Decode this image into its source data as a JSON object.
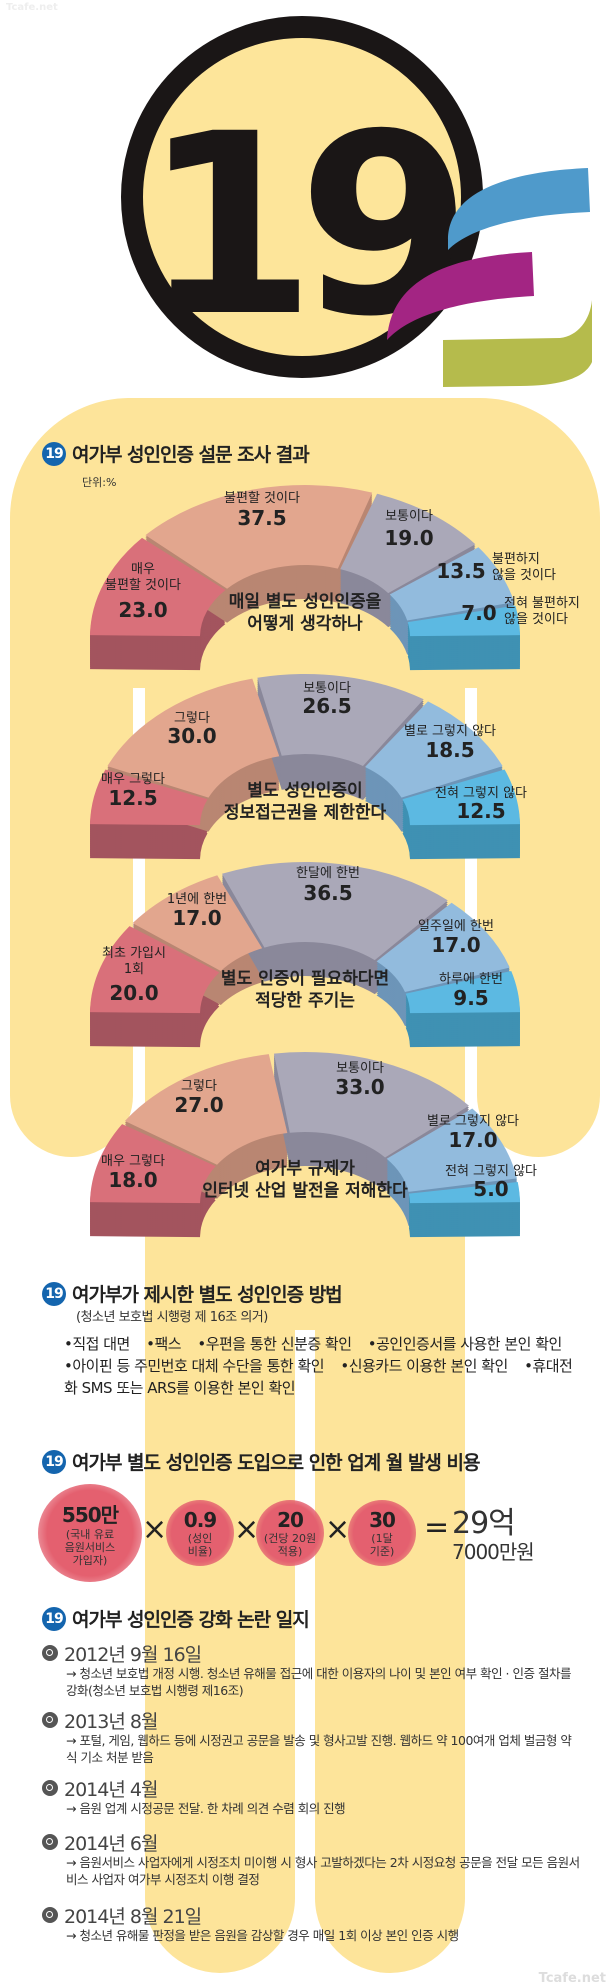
{
  "watermark": "Tcafe.net",
  "logo": {
    "text": "19",
    "colors": {
      "circle_fill": "#fde59a",
      "ribbon_blue": "#4f9acb",
      "ribbon_magenta": "#a32583",
      "ribbon_green": "#b5bb4c"
    }
  },
  "survey": {
    "badge": "19",
    "title": "여가부 성인인증 설문 조사 결과",
    "unit": "단위:%"
  },
  "chart_data": [
    {
      "type": "pie",
      "shape": "half-donut",
      "title": "매일 별도 성인인증을\n어떻게 생각하나",
      "categories": [
        "매우\n불편할 것이다",
        "불편할 것이다",
        "보통이다",
        "불편하지\n않을 것이다",
        "전혀 불편하지\n않을 것이다"
      ],
      "values": [
        23.0,
        37.5,
        19.0,
        13.5,
        7.0
      ]
    },
    {
      "type": "pie",
      "shape": "half-donut",
      "title": "별도 성인인증이\n정보접근권을 제한한다",
      "categories": [
        "매우 그렇다",
        "그렇다",
        "보통이다",
        "별로 그렇지 않다",
        "전혀 그렇지 않다"
      ],
      "values": [
        12.5,
        30.0,
        26.5,
        18.5,
        12.5
      ]
    },
    {
      "type": "pie",
      "shape": "half-donut",
      "title": "별도 인증이 필요하다면\n적당한 주기는",
      "categories": [
        "최초 가입시\n1회",
        "1년에 한번",
        "한달에 한번",
        "일주일에 한번",
        "하루에 한번"
      ],
      "values": [
        20.0,
        17.0,
        36.5,
        17.0,
        9.5
      ]
    },
    {
      "type": "pie",
      "shape": "half-donut",
      "title": "여가부 규제가\n인터넷 산업 발전을 저해한다",
      "categories": [
        "매우 그렇다",
        "그렇다",
        "보통이다",
        "별로 그렇지 않다",
        "전혀 그렇지 않다"
      ],
      "values": [
        18.0,
        27.0,
        33.0,
        17.0,
        5.0
      ]
    }
  ],
  "segment_colors": [
    "#d9707a",
    "#e2a68e",
    "#aaa8b8",
    "#92bbdd",
    "#5cb9e2"
  ],
  "segment_side_colors": [
    "#a3545e",
    "#b98672",
    "#8a889a",
    "#6d95b8",
    "#3f91b3"
  ],
  "methods": {
    "badge": "19",
    "title": "여가부가 제시한 별도 성인인증 방법",
    "subtitle": "(청소년 보호법 시행령 제 16조 의거)",
    "items": [
      "•직접 대면",
      "•팩스",
      "•우편을 통한 신분증 확인",
      "•공인인증서를 사용한 본인 확인",
      "•아이핀 등 주민번호 대체 수단을 통한 확인",
      "•신용카드 이용한 본인 확인",
      "•휴대전화 SMS 또는 ARS를 이용한 본인 확인"
    ]
  },
  "cost": {
    "badge": "19",
    "title": "여가부 별도 성인인증 도입으로 인한 업계 월 발생 비용",
    "factors": [
      {
        "value": "550만",
        "desc": "(국내 유료\n음원서비스\n가입자)"
      },
      {
        "value": "0.9",
        "desc": "(성인\n비율)"
      },
      {
        "value": "20",
        "desc": "(건당 20원\n적용)"
      },
      {
        "value": "30",
        "desc": "(1달\n기준)"
      }
    ],
    "times": "×",
    "equals": "=",
    "result_line1": "29억",
    "result_line2": "7000만원"
  },
  "timeline": {
    "badge": "19",
    "title": "여가부 성인인증 강화 논란 일지",
    "events": [
      {
        "date": "2012년 9월 16일",
        "desc": "→ 청소년 보호법 개정 시행. 청소년 유해물 접근에 대한 이용자의 나이 및 본인 여부 확인 · 인증 절차를 강화(청소년 보호법 시행령 제16조)"
      },
      {
        "date": "2013년 8월",
        "desc": "→ 포털, 게임, 웹하드 등에 시정권고 공문을 발송 및 형사고발 진행. 웹하드 약 100여개 업체 벌금형 약식 기소 처분 받음"
      },
      {
        "date": "2014년 4월",
        "desc": "→ 음원 업계 시정공문 전달. 한 차례 의견 수렴 회의 진행"
      },
      {
        "date": "2014년 6월",
        "desc": "→ 음원서비스 사업자에게 시정조치 미이행 시 형사 고발하겠다는 2차 시정요청 공문을 전달 모든 음원서비스 사업자 여가부 시정조치 이행 결정"
      },
      {
        "date": "2014년 8월 21일",
        "desc": "→ 청소년 유해물 판정을 받은 음원을 감상할 경우 매일 1회 이상 본인 인증 시행"
      }
    ]
  }
}
